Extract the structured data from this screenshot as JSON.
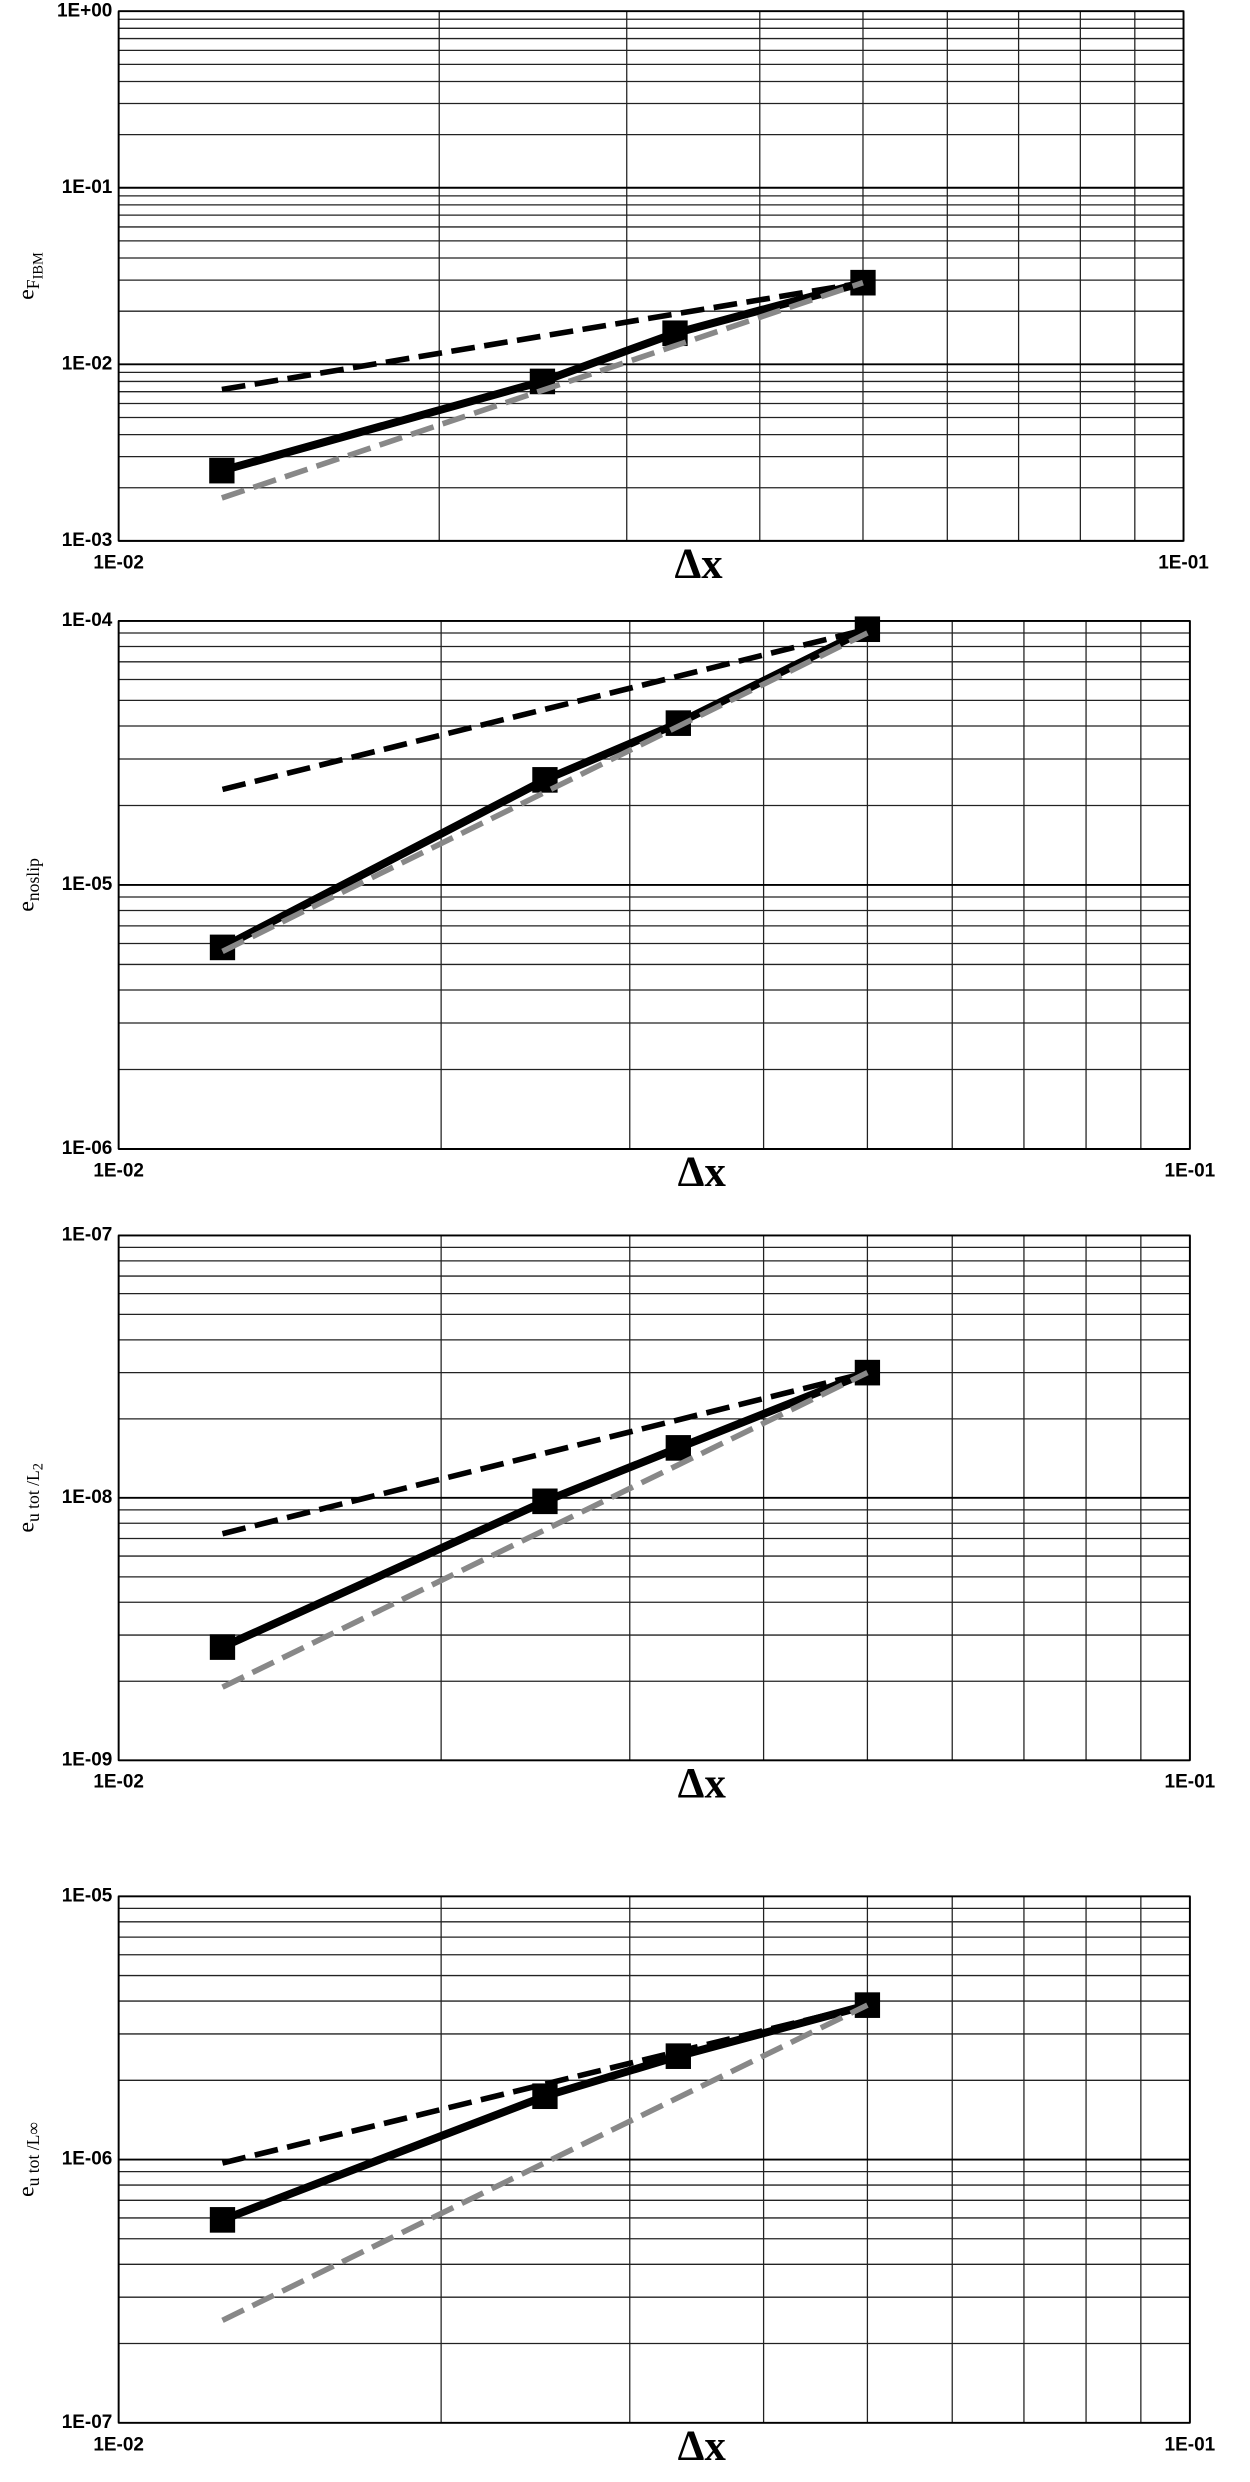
{
  "chart_data": [
    {
      "type": "line",
      "log_x": true,
      "log_y": true,
      "grid": true,
      "minor_grid": true,
      "x_label": "Δx",
      "y_label": {
        "main": "e",
        "sub": "F",
        "subsub": "IBM"
      },
      "xlim": [
        0.01,
        0.1
      ],
      "xticks": [
        {
          "value": 0.01,
          "label": "1E-02"
        },
        {
          "value": 0.1,
          "label": "1E-01"
        }
      ],
      "ylim": [
        0.001,
        1
      ],
      "yticks": [
        {
          "value": 0.001,
          "label": "1E-03"
        },
        {
          "value": 0.01,
          "label": "1E-02"
        },
        {
          "value": 0.1,
          "label": "1E-01"
        },
        {
          "value": 1,
          "label": "1E+00"
        }
      ],
      "series": [
        {
          "color": "#000000",
          "dashed": false,
          "marker": "square",
          "x": [
            0.0125,
            0.025,
            0.0333,
            0.05
          ],
          "values": [
            0.0025,
            0.008,
            0.015,
            0.029
          ]
        },
        {
          "color": "#000000",
          "dashed": true,
          "x": [
            0.0125,
            0.05
          ],
          "values": [
            0.0072,
            0.029
          ]
        },
        {
          "color": "#888888",
          "dashed": true,
          "x": [
            0.0125,
            0.05
          ],
          "values": [
            0.00175,
            0.029
          ]
        }
      ]
    },
    {
      "type": "line",
      "log_x": true,
      "log_y": true,
      "grid": true,
      "minor_grid": true,
      "x_label": "Δx",
      "y_label": {
        "main": "e",
        "sub": "noslip"
      },
      "xlim": [
        0.01,
        0.1
      ],
      "xticks": [
        {
          "value": 0.01,
          "label": "1E-02"
        },
        {
          "value": 0.1,
          "label": "1E-01"
        }
      ],
      "ylim": [
        1e-06,
        0.0001
      ],
      "yticks": [
        {
          "value": 1e-06,
          "label": "1E-06"
        },
        {
          "value": 1e-05,
          "label": "1E-05"
        },
        {
          "value": 0.0001,
          "label": "1E-04"
        }
      ],
      "series": [
        {
          "color": "#000000",
          "dashed": false,
          "marker": "square",
          "x": [
            0.0125,
            0.025,
            0.0333,
            0.05
          ],
          "values": [
            5.8e-06,
            2.5e-05,
            4.1e-05,
            9.3e-05
          ]
        },
        {
          "color": "#000000",
          "dashed": true,
          "x": [
            0.0125,
            0.05
          ],
          "values": [
            2.3e-05,
            9.3e-05
          ]
        },
        {
          "color": "#888888",
          "dashed": true,
          "x": [
            0.0125,
            0.05
          ],
          "values": [
            5.6e-06,
            9e-05
          ]
        }
      ]
    },
    {
      "type": "line",
      "log_x": true,
      "log_y": true,
      "grid": true,
      "minor_grid": true,
      "x_label": "Δx",
      "y_label": {
        "main": "e",
        "sub": "u tot /L",
        "subsub": "2"
      },
      "xlim": [
        0.01,
        0.1
      ],
      "xticks": [
        {
          "value": 0.01,
          "label": "1E-02"
        },
        {
          "value": 0.1,
          "label": "1E-01"
        }
      ],
      "ylim": [
        1e-09,
        1e-07
      ],
      "yticks": [
        {
          "value": 1e-09,
          "label": "1E-09"
        },
        {
          "value": 1e-08,
          "label": "1E-08"
        },
        {
          "value": 1e-07,
          "label": "1E-07"
        }
      ],
      "series": [
        {
          "color": "#000000",
          "dashed": false,
          "marker": "square",
          "x": [
            0.0125,
            0.025,
            0.0333,
            0.05
          ],
          "values": [
            2.7e-09,
            9.7e-09,
            1.55e-08,
            3e-08
          ]
        },
        {
          "color": "#000000",
          "dashed": true,
          "x": [
            0.0125,
            0.05
          ],
          "values": [
            7.3e-09,
            3e-08
          ]
        },
        {
          "color": "#888888",
          "dashed": true,
          "x": [
            0.0125,
            0.05
          ],
          "values": [
            1.9e-09,
            3e-08
          ]
        }
      ]
    },
    {
      "type": "line",
      "log_x": true,
      "log_y": true,
      "grid": true,
      "minor_grid": true,
      "x_label": "Δx",
      "y_label": {
        "main": "e",
        "sub": "u tot /L∞"
      },
      "xlim": [
        0.01,
        0.1
      ],
      "xticks": [
        {
          "value": 0.01,
          "label": "1E-02"
        },
        {
          "value": 0.1,
          "label": "1E-01"
        }
      ],
      "ylim": [
        1e-07,
        1e-05
      ],
      "yticks": [
        {
          "value": 1e-07,
          "label": "1E-07"
        },
        {
          "value": 1e-06,
          "label": "1E-06"
        },
        {
          "value": 1e-05,
          "label": "1E-05"
        }
      ],
      "series": [
        {
          "color": "#000000",
          "dashed": false,
          "marker": "square",
          "x": [
            0.0125,
            0.025,
            0.0333,
            0.05
          ],
          "values": [
            5.9e-07,
            1.74e-06,
            2.47e-06,
            3.86e-06
          ]
        },
        {
          "color": "#000000",
          "dashed": true,
          "x": [
            0.0125,
            0.05
          ],
          "values": [
            9.7e-07,
            3.86e-06
          ]
        },
        {
          "color": "#888888",
          "dashed": true,
          "x": [
            0.0125,
            0.05
          ],
          "values": [
            2.45e-07,
            3.86e-06
          ]
        }
      ]
    }
  ]
}
